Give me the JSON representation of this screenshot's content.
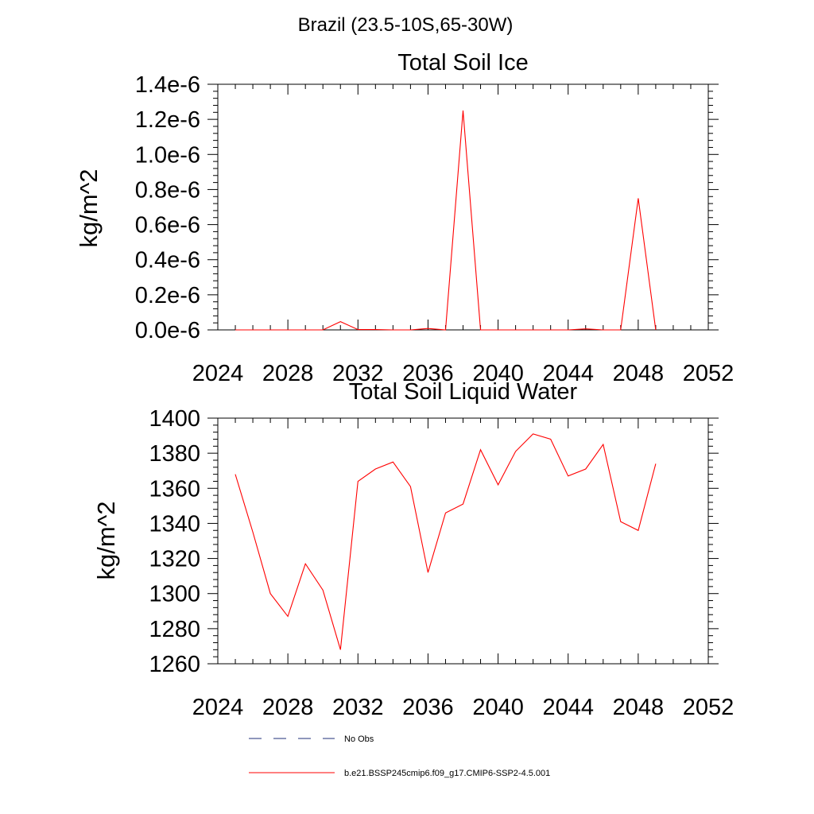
{
  "page": {
    "subtitle": "Brazil (23.5-10S,65-30W)"
  },
  "chart_data": [
    {
      "type": "line",
      "title": "Total Soil Ice",
      "ylabel": "kg/m^2",
      "xlabel": "",
      "xlim": [
        2024,
        2052
      ],
      "ylim": [
        0,
        1.4e-06
      ],
      "x_ticks": [
        2024,
        2028,
        2032,
        2036,
        2040,
        2044,
        2048,
        2052
      ],
      "x_tick_labels": [
        "2024",
        "2028",
        "2032",
        "2036",
        "2040",
        "2044",
        "2048",
        "2052"
      ],
      "y_ticks": [
        0,
        2e-07,
        4e-07,
        6e-07,
        8e-07,
        1e-06,
        1.2e-06,
        1.4e-06
      ],
      "y_tick_labels": [
        "0.0e-6",
        "0.2e-6",
        "0.4e-6",
        "0.6e-6",
        "0.8e-6",
        "1.0e-6",
        "1.2e-6",
        "1.4e-6"
      ],
      "series": [
        {
          "name": "b.e21.BSSP245cmip6.f09_g17.CMIP6-SSP2-4.5.001",
          "color": "#ff0000",
          "x": [
            2025,
            2026,
            2027,
            2028,
            2029,
            2030,
            2031,
            2032,
            2033,
            2034,
            2035,
            2036,
            2037,
            2038,
            2039,
            2040,
            2041,
            2042,
            2043,
            2044,
            2045,
            2046,
            2047,
            2048,
            2049
          ],
          "values": [
            0,
            0,
            0,
            0,
            0,
            0,
            4.7e-08,
            2e-09,
            2e-09,
            0,
            0,
            8e-09,
            0,
            1.25e-06,
            0,
            0,
            0,
            0,
            0,
            0,
            6e-09,
            0,
            0,
            7.5e-07,
            0
          ]
        }
      ]
    },
    {
      "type": "line",
      "title": "Total Soil Liquid Water",
      "ylabel": "kg/m^2",
      "xlabel": "",
      "xlim": [
        2024,
        2052
      ],
      "ylim": [
        1260,
        1400
      ],
      "x_ticks": [
        2024,
        2028,
        2032,
        2036,
        2040,
        2044,
        2048,
        2052
      ],
      "x_tick_labels": [
        "2024",
        "2028",
        "2032",
        "2036",
        "2040",
        "2044",
        "2048",
        "2052"
      ],
      "y_ticks": [
        1260,
        1280,
        1300,
        1320,
        1340,
        1360,
        1380,
        1400
      ],
      "y_tick_labels": [
        "1260",
        "1280",
        "1300",
        "1320",
        "1340",
        "1360",
        "1380",
        "1400"
      ],
      "series": [
        {
          "name": "b.e21.BSSP245cmip6.f09_g17.CMIP6-SSP2-4.5.001",
          "color": "#ff0000",
          "x": [
            2025,
            2026,
            2027,
            2028,
            2029,
            2030,
            2031,
            2032,
            2033,
            2034,
            2035,
            2036,
            2037,
            2038,
            2039,
            2040,
            2041,
            2042,
            2043,
            2044,
            2045,
            2046,
            2047,
            2048,
            2049
          ],
          "values": [
            1368,
            1335,
            1300,
            1287,
            1317,
            1302,
            1268,
            1364,
            1371,
            1375,
            1361,
            1312,
            1346,
            1351,
            1382,
            1362,
            1381,
            1391,
            1388,
            1367,
            1371,
            1385,
            1341,
            1336,
            1374
          ]
        }
      ]
    }
  ],
  "legend": {
    "items": [
      {
        "label": "No Obs",
        "style": "dashed",
        "color": "#1f2f7a"
      },
      {
        "label": "b.e21.BSSP245cmip6.f09_g17.CMIP6-SSP2-4.5.001",
        "style": "solid",
        "color": "#ff0000"
      }
    ]
  }
}
